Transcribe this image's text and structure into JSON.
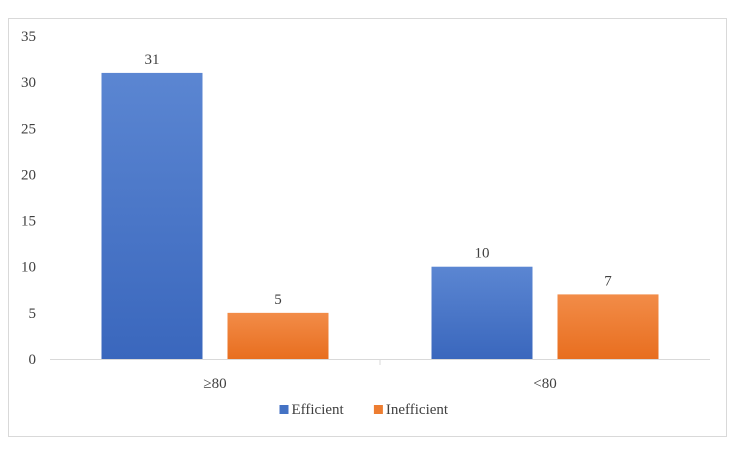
{
  "chart_data": {
    "type": "bar",
    "categories": [
      "≥80",
      "<80"
    ],
    "series": [
      {
        "name": "Efficient",
        "values": [
          31,
          10
        ],
        "color": "#4472c4"
      },
      {
        "name": "Inefficient",
        "values": [
          5,
          7
        ],
        "color": "#ed7d31"
      }
    ],
    "ylim": [
      0,
      35
    ],
    "yticks": [
      0,
      5,
      10,
      15,
      20,
      25,
      30,
      35
    ],
    "title": "",
    "xlabel": "",
    "ylabel": "",
    "grid": false,
    "legend": "bottom",
    "data_labels": true
  }
}
